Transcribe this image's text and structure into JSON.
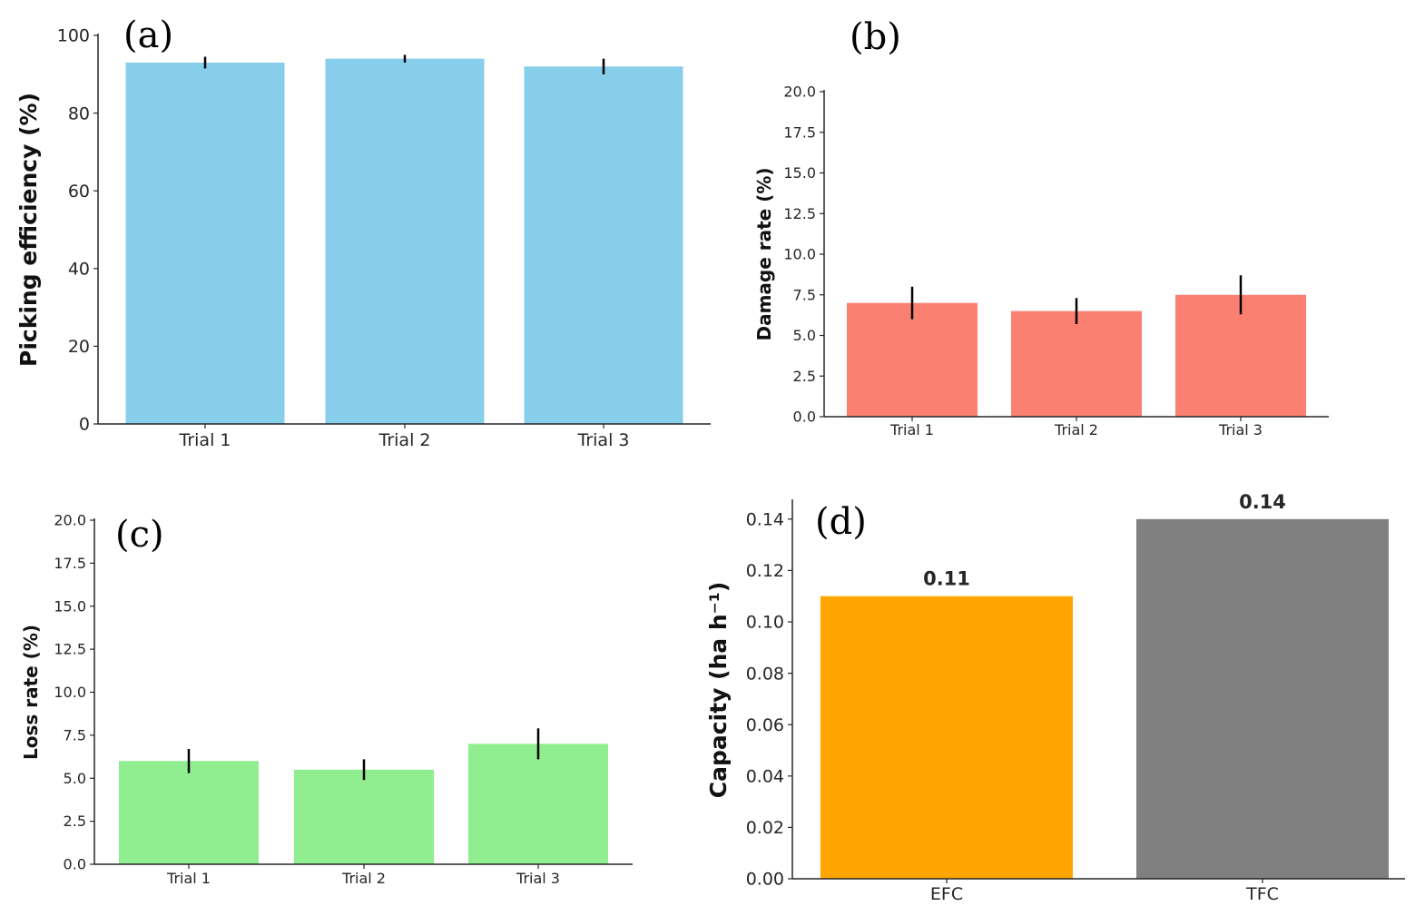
{
  "chart_data": [
    {
      "panel": "(a)",
      "type": "bar",
      "categories": [
        "Trial 1",
        "Trial 2",
        "Trial 3"
      ],
      "values": [
        93,
        94,
        92
      ],
      "errors": [
        1.5,
        1.0,
        2.0
      ],
      "ylabel": "Picking efficiency (%)",
      "ylim": [
        0,
        100
      ],
      "yticks": [
        "0",
        "20",
        "40",
        "60",
        "80",
        "100"
      ],
      "color": "#87ceeb"
    },
    {
      "panel": "(b)",
      "type": "bar",
      "categories": [
        "Trial 1",
        "Trial 2",
        "Trial 3"
      ],
      "values": [
        7.0,
        6.5,
        7.5
      ],
      "errors": [
        1.0,
        0.8,
        1.2
      ],
      "ylabel": "Damage rate (%)",
      "ylim": [
        0,
        20
      ],
      "yticks": [
        "0.0",
        "2.5",
        "5.0",
        "7.5",
        "10.0",
        "12.5",
        "15.0",
        "17.5",
        "20.0"
      ],
      "color": "#fa8072"
    },
    {
      "panel": "(c)",
      "type": "bar",
      "categories": [
        "Trial 1",
        "Trial 2",
        "Trial 3"
      ],
      "values": [
        6.0,
        5.5,
        7.0
      ],
      "errors": [
        0.7,
        0.6,
        0.9
      ],
      "ylabel": "Loss rate (%)",
      "ylim": [
        0,
        20
      ],
      "yticks": [
        "0.0",
        "2.5",
        "5.0",
        "7.5",
        "10.0",
        "12.5",
        "15.0",
        "17.5",
        "20.0"
      ],
      "color": "#90ee90"
    },
    {
      "panel": "(d)",
      "type": "bar",
      "categories": [
        "EFC",
        "TFC"
      ],
      "values": [
        0.11,
        0.14
      ],
      "value_labels": [
        "0.11",
        "0.14"
      ],
      "ylabel": "Capacity (ha h⁻¹)",
      "ylim": [
        0,
        0.147
      ],
      "yticks": [
        "0.00",
        "0.02",
        "0.04",
        "0.06",
        "0.08",
        "0.10",
        "0.12",
        "0.14"
      ],
      "colors": [
        "#ffa500",
        "#808080"
      ]
    }
  ]
}
